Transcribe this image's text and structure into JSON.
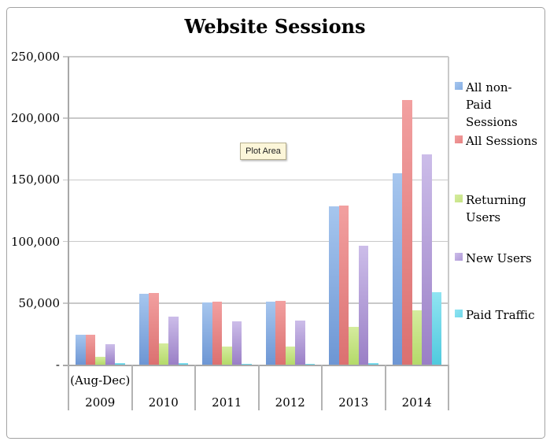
{
  "title": "Website Sessions",
  "plot_area_tooltip": "Plot Area",
  "y_axis": {
    "tick_labels": [
      "250,000",
      "200,000",
      "150,000",
      "100,000",
      "50,000",
      "-"
    ]
  },
  "x_axis": {
    "first_category_sub_label": "(Aug-Dec)",
    "category_labels": [
      "2009",
      "2010",
      "2011",
      "2012",
      "2013",
      "2014"
    ]
  },
  "legend": {
    "items": [
      {
        "label": "All non-Paid Sessions",
        "lines": [
          "All non-",
          "Paid",
          "Sessions"
        ]
      },
      {
        "label": "All Sessions",
        "lines": [
          "All Sessions"
        ]
      },
      {
        "label": "Returning Users",
        "lines": [
          "Returning",
          "Users"
        ]
      },
      {
        "label": "New Users",
        "lines": [
          "New Users"
        ]
      },
      {
        "label": "Paid Traffic",
        "lines": [
          "Paid Traffic"
        ]
      }
    ]
  },
  "colors": {
    "gridline": "#c9c9c9",
    "axis": "#a8a8a8",
    "tooltip_bg": "#fcf6d9"
  },
  "chart_data": {
    "type": "bar",
    "title": "Website Sessions",
    "categories": [
      "2009 (Aug-Dec)",
      "2010",
      "2011",
      "2012",
      "2013",
      "2014"
    ],
    "series": [
      {
        "name": "All non-Paid Sessions",
        "color": "#85aee4",
        "color_top": "#a6c6ee",
        "color_bottom": "#6d96d4",
        "values": [
          24000,
          57500,
          50500,
          51000,
          128500,
          155500
        ]
      },
      {
        "name": "All Sessions",
        "color": "#e88383",
        "color_top": "#f2a0a0",
        "color_bottom": "#db7070",
        "values": [
          24500,
          58000,
          51000,
          51500,
          129000,
          215000
        ]
      },
      {
        "name": "Returning Users",
        "color": "#c5e283",
        "color_top": "#d5ec9e",
        "color_bottom": "#b4da69",
        "values": [
          6500,
          17500,
          14500,
          14500,
          31000,
          44000
        ]
      },
      {
        "name": "New Users",
        "color": "#ae98d7",
        "color_top": "#ccbde9",
        "color_bottom": "#9a7fc6",
        "values": [
          16500,
          39000,
          35000,
          36000,
          96500,
          171000
        ]
      },
      {
        "name": "Paid Traffic",
        "color": "#6fd8ea",
        "color_top": "#90e4f2",
        "color_bottom": "#50cade",
        "values": [
          1200,
          1000,
          700,
          700,
          1200,
          59000
        ]
      }
    ],
    "ylim": [
      0,
      250000
    ],
    "y_tick_interval": 50000,
    "grid": true,
    "legend_position": "right"
  }
}
